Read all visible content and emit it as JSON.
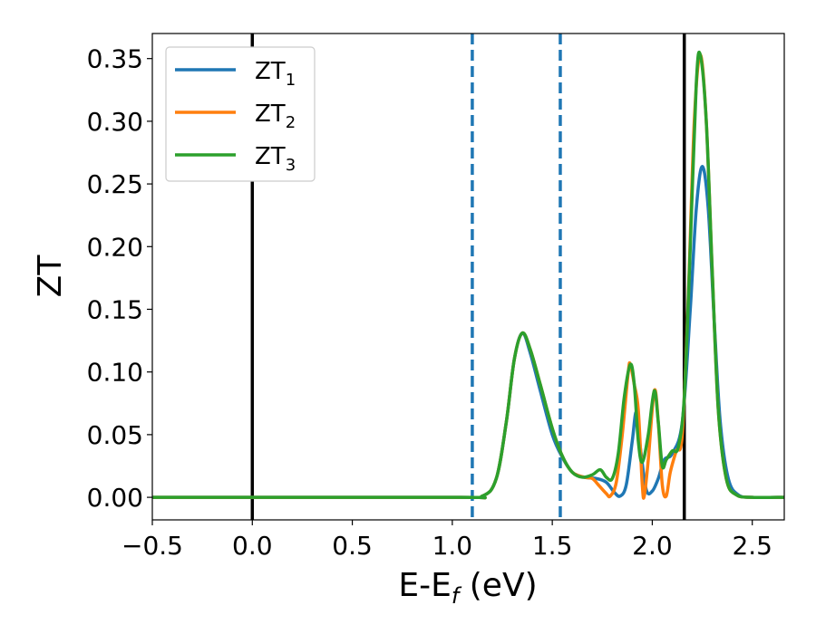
{
  "chart_data": {
    "type": "line",
    "xlabel": {
      "main": "E-E",
      "sub": "f",
      "rest": " (eV)"
    },
    "ylabel": "ZT",
    "xlim": [
      -0.5,
      2.66
    ],
    "ylim": [
      -0.018,
      0.37
    ],
    "xticks": [
      -0.5,
      0.0,
      0.5,
      1.0,
      1.5,
      2.0,
      2.5
    ],
    "xtick_labels": [
      "−0.5",
      "0.0",
      "0.5",
      "1.0",
      "1.5",
      "2.0",
      "2.5"
    ],
    "yticks": [
      0.0,
      0.05,
      0.1,
      0.15,
      0.2,
      0.25,
      0.3,
      0.35
    ],
    "ytick_labels": [
      "0.00",
      "0.05",
      "0.10",
      "0.15",
      "0.20",
      "0.25",
      "0.30",
      "0.35"
    ],
    "grid": false,
    "legend_position": "top-left",
    "vlines": [
      {
        "x": 0.0,
        "style": "solid",
        "color": "#000000"
      },
      {
        "x": 1.1,
        "style": "dashed",
        "color": "#1f77b4"
      },
      {
        "x": 1.54,
        "style": "dashed",
        "color": "#1f77b4"
      },
      {
        "x": 2.16,
        "style": "solid",
        "color": "#000000"
      }
    ],
    "series": [
      {
        "name": "ZT",
        "sub": "1",
        "color": "#1f77b4",
        "points": [
          [
            -0.5,
            0
          ],
          [
            1.0,
            0
          ],
          [
            1.15,
            0.001
          ],
          [
            1.22,
            0.015
          ],
          [
            1.27,
            0.06
          ],
          [
            1.31,
            0.11
          ],
          [
            1.35,
            0.131
          ],
          [
            1.39,
            0.115
          ],
          [
            1.44,
            0.085
          ],
          [
            1.5,
            0.05
          ],
          [
            1.55,
            0.032
          ],
          [
            1.6,
            0.02
          ],
          [
            1.66,
            0.016
          ],
          [
            1.72,
            0.015
          ],
          [
            1.77,
            0.012
          ],
          [
            1.81,
            0.004
          ],
          [
            1.84,
            0.001
          ],
          [
            1.87,
            0.01
          ],
          [
            1.9,
            0.045
          ],
          [
            1.92,
            0.068
          ],
          [
            1.94,
            0.04
          ],
          [
            1.97,
            0.006
          ],
          [
            2.0,
            0.005
          ],
          [
            2.03,
            0.015
          ],
          [
            2.06,
            0.03
          ],
          [
            2.1,
            0.035
          ],
          [
            2.15,
            0.06
          ],
          [
            2.19,
            0.15
          ],
          [
            2.22,
            0.23
          ],
          [
            2.25,
            0.264
          ],
          [
            2.28,
            0.23
          ],
          [
            2.31,
            0.14
          ],
          [
            2.34,
            0.06
          ],
          [
            2.38,
            0.015
          ],
          [
            2.43,
            0.002
          ],
          [
            2.5,
            0
          ],
          [
            2.66,
            0
          ]
        ]
      },
      {
        "name": "ZT",
        "sub": "2",
        "color": "#ff7f0e",
        "points": [
          [
            -0.5,
            0
          ],
          [
            1.0,
            0
          ],
          [
            1.15,
            0.001
          ],
          [
            1.22,
            0.015
          ],
          [
            1.27,
            0.06
          ],
          [
            1.31,
            0.11
          ],
          [
            1.35,
            0.131
          ],
          [
            1.39,
            0.118
          ],
          [
            1.44,
            0.09
          ],
          [
            1.5,
            0.055
          ],
          [
            1.55,
            0.033
          ],
          [
            1.6,
            0.02
          ],
          [
            1.66,
            0.016
          ],
          [
            1.7,
            0.015
          ],
          [
            1.73,
            0.01
          ],
          [
            1.77,
            0.003
          ],
          [
            1.79,
            0.001
          ],
          [
            1.82,
            0.012
          ],
          [
            1.85,
            0.05
          ],
          [
            1.88,
            0.1
          ],
          [
            1.89,
            0.106
          ],
          [
            1.91,
            0.09
          ],
          [
            1.93,
            0.07
          ],
          [
            1.95,
            0.01
          ],
          [
            1.96,
            0.001
          ],
          [
            1.98,
            0.03
          ],
          [
            2.01,
            0.085
          ],
          [
            2.03,
            0.06
          ],
          [
            2.05,
            0.01
          ],
          [
            2.07,
            0.001
          ],
          [
            2.09,
            0.02
          ],
          [
            2.12,
            0.037
          ],
          [
            2.15,
            0.05
          ],
          [
            2.18,
            0.16
          ],
          [
            2.21,
            0.3
          ],
          [
            2.24,
            0.353
          ],
          [
            2.27,
            0.3
          ],
          [
            2.3,
            0.18
          ],
          [
            2.33,
            0.07
          ],
          [
            2.37,
            0.015
          ],
          [
            2.42,
            0.002
          ],
          [
            2.5,
            0
          ],
          [
            2.66,
            0
          ]
        ]
      },
      {
        "name": "ZT",
        "sub": "3",
        "color": "#2ca02c",
        "points": [
          [
            -0.5,
            0
          ],
          [
            1.0,
            0
          ],
          [
            1.15,
            0.001
          ],
          [
            1.22,
            0.015
          ],
          [
            1.27,
            0.06
          ],
          [
            1.31,
            0.11
          ],
          [
            1.35,
            0.131
          ],
          [
            1.39,
            0.118
          ],
          [
            1.44,
            0.09
          ],
          [
            1.5,
            0.055
          ],
          [
            1.55,
            0.033
          ],
          [
            1.6,
            0.02
          ],
          [
            1.65,
            0.016
          ],
          [
            1.7,
            0.018
          ],
          [
            1.74,
            0.022
          ],
          [
            1.77,
            0.016
          ],
          [
            1.8,
            0.015
          ],
          [
            1.83,
            0.035
          ],
          [
            1.86,
            0.08
          ],
          [
            1.89,
            0.106
          ],
          [
            1.91,
            0.09
          ],
          [
            1.93,
            0.045
          ],
          [
            1.95,
            0.028
          ],
          [
            1.98,
            0.05
          ],
          [
            2.01,
            0.085
          ],
          [
            2.03,
            0.06
          ],
          [
            2.05,
            0.025
          ],
          [
            2.07,
            0.03
          ],
          [
            2.1,
            0.037
          ],
          [
            2.13,
            0.04
          ],
          [
            2.16,
            0.08
          ],
          [
            2.19,
            0.2
          ],
          [
            2.22,
            0.33
          ],
          [
            2.24,
            0.353
          ],
          [
            2.27,
            0.3
          ],
          [
            2.3,
            0.18
          ],
          [
            2.33,
            0.07
          ],
          [
            2.37,
            0.015
          ],
          [
            2.42,
            0.002
          ],
          [
            2.5,
            0
          ],
          [
            2.66,
            0
          ]
        ]
      }
    ]
  }
}
